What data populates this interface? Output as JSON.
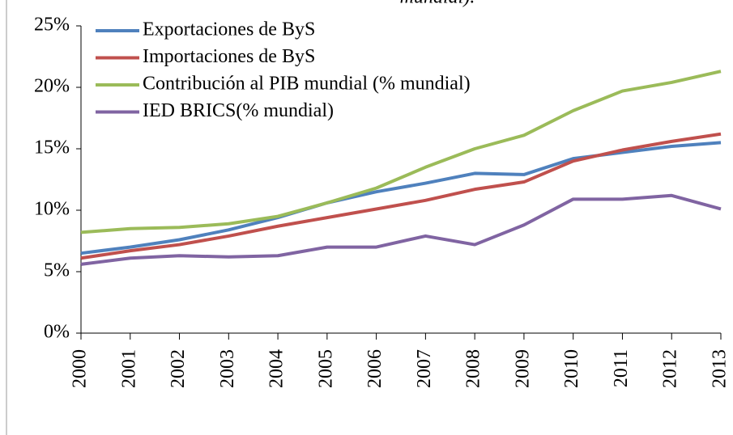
{
  "chart_data": {
    "type": "line",
    "title": "mundial).",
    "categories": [
      "2000",
      "2001",
      "2002",
      "2003",
      "2004",
      "2005",
      "2006",
      "2007",
      "2008",
      "2009",
      "2010",
      "2011",
      "2012",
      "2013"
    ],
    "series": [
      {
        "name": "Exportaciones de ByS",
        "color": "#4f81bd",
        "values": [
          6.5,
          7.0,
          7.6,
          8.4,
          9.4,
          10.6,
          11.5,
          12.2,
          13.0,
          12.9,
          14.2,
          14.7,
          15.2,
          15.5
        ]
      },
      {
        "name": "Importaciones de ByS",
        "color": "#c0504d",
        "values": [
          6.1,
          6.7,
          7.2,
          7.9,
          8.7,
          9.4,
          10.1,
          10.8,
          11.7,
          12.3,
          14.0,
          14.9,
          15.6,
          16.2
        ]
      },
      {
        "name": "Contribución al PIB mundial (% mundial)",
        "color": "#9bbb59",
        "values": [
          8.2,
          8.5,
          8.6,
          8.9,
          9.5,
          10.6,
          11.8,
          13.5,
          15.0,
          16.1,
          18.1,
          19.7,
          20.4,
          21.3
        ]
      },
      {
        "name": "IED BRICS(% mundial)",
        "color": "#8064a2",
        "values": [
          5.6,
          6.1,
          6.3,
          6.2,
          6.3,
          7.0,
          7.0,
          7.9,
          7.2,
          8.8,
          10.9,
          10.9,
          11.2,
          10.1
        ]
      }
    ],
    "ylim": [
      0,
      25
    ],
    "yticks": [
      {
        "value": 0,
        "label": "0%"
      },
      {
        "value": 5,
        "label": "5%"
      },
      {
        "value": 10,
        "label": "10%"
      },
      {
        "value": 15,
        "label": "15%"
      },
      {
        "value": 20,
        "label": "20%"
      },
      {
        "value": 25,
        "label": "25%"
      }
    ],
    "legend": "upper left",
    "grid": false
  }
}
